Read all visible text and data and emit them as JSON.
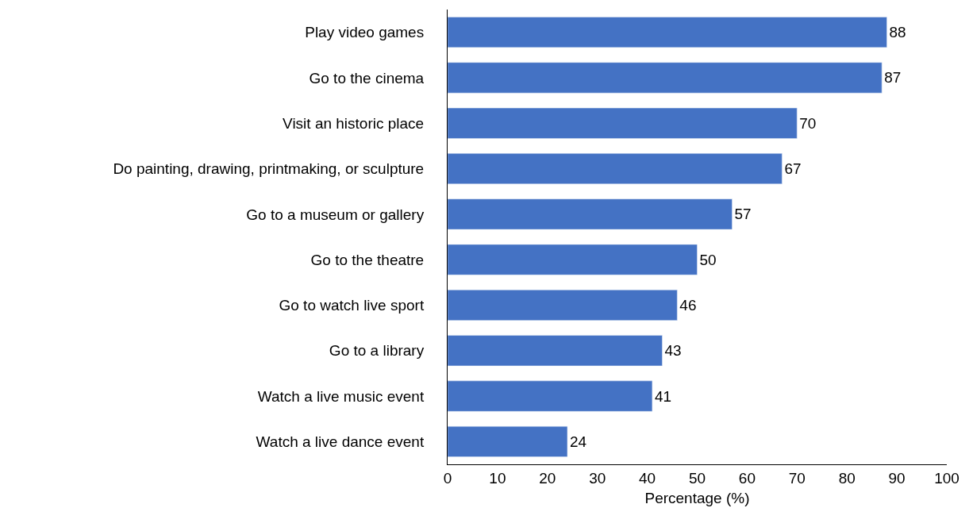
{
  "chart_data": {
    "type": "bar",
    "orientation": "horizontal",
    "xlabel": "Percentage (%)",
    "categories": [
      "Play video games",
      "Go to the cinema",
      "Visit an historic place",
      "Do painting, drawing, printmaking, or sculpture",
      "Go to a museum or gallery",
      "Go to the theatre",
      "Go to watch live sport",
      "Go to a library",
      "Watch a live music event",
      "Watch a live dance event"
    ],
    "values": [
      88,
      87,
      70,
      67,
      57,
      50,
      46,
      43,
      41,
      24
    ],
    "color": "#4472c4",
    "xlim": [
      0,
      100
    ],
    "xticks": [
      0,
      10,
      20,
      30,
      40,
      50,
      60,
      70,
      80,
      90,
      100
    ],
    "data_labels": true,
    "legend": false
  }
}
